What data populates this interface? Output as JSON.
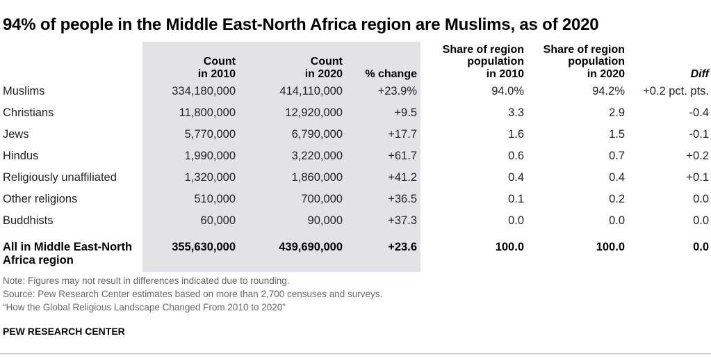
{
  "title": "94% of people in the Middle East-North Africa region are Muslims, as of 2020",
  "chart_data": {
    "type": "table",
    "title": "94% of people in the Middle East-North Africa region are Muslims, as of 2020",
    "columns": [
      "",
      "Count\nin 2010",
      "Count\nin 2020",
      "% change",
      "Share of region\npopulation\nin 2010",
      "Share of region\npopulation\nin 2020",
      "Diff"
    ],
    "rows": [
      [
        "Muslims",
        "334,180,000",
        "414,110,000",
        "+23.9%",
        "94.0%",
        "94.2%",
        "+0.2 pct. pts."
      ],
      [
        "Christians",
        "11,800,000",
        "12,920,000",
        "+9.5",
        "3.3",
        "2.9",
        "-0.4"
      ],
      [
        "Jews",
        "5,770,000",
        "6,790,000",
        "+17.7",
        "1.6",
        "1.5",
        "-0.1"
      ],
      [
        "Hindus",
        "1,990,000",
        "3,220,000",
        "+61.7",
        "0.6",
        "0.7",
        "+0.2"
      ],
      [
        "Religiously unaffiliated",
        "1,320,000",
        "1,860,000",
        "+41.2",
        "0.4",
        "0.4",
        "+0.1"
      ],
      [
        "Other religions",
        "510,000",
        "700,000",
        "+36.5",
        "0.1",
        "0.2",
        "0.0"
      ],
      [
        "Buddhists",
        "60,000",
        "90,000",
        "+37.3",
        "0.0",
        "0.0",
        "0.0"
      ]
    ],
    "total": [
      "All in Middle East-North\nAfrica region",
      "355,630,000",
      "439,690,000",
      "+23.6",
      "100.0",
      "100.0",
      "0.0"
    ]
  },
  "notes": [
    "Note: Figures may not result in differences indicated due to rounding.",
    "Source: Pew Research Center estimates based on more than 2,700 censuses and surveys.",
    "“How the Global Religious Landscape Changed From 2010 to 2020”"
  ],
  "brand": "PEW RESEARCH CENTER"
}
